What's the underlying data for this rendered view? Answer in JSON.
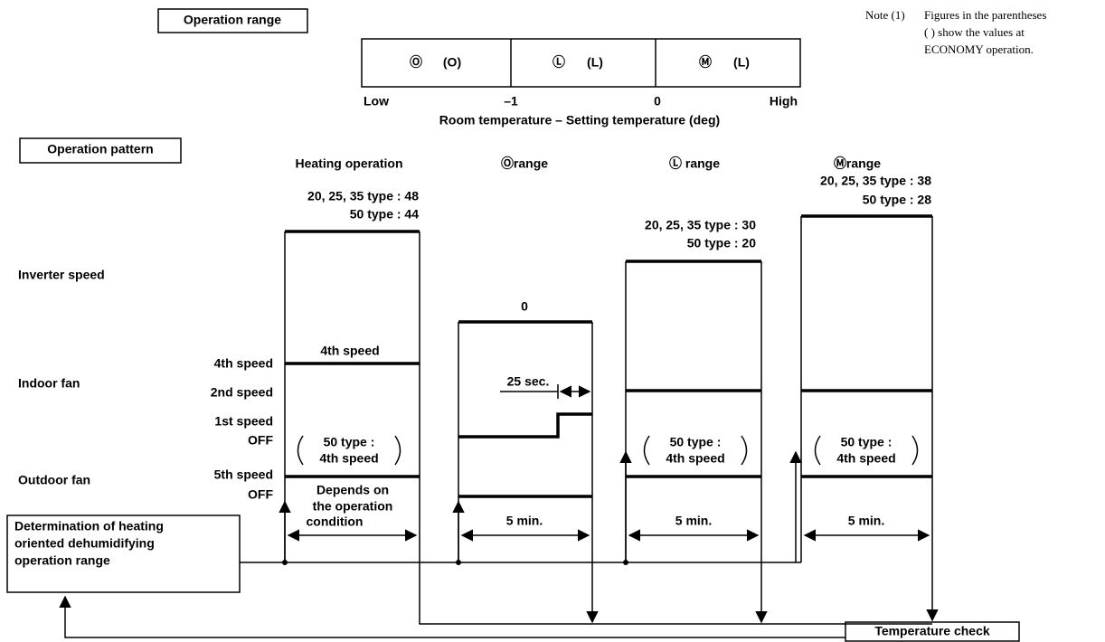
{
  "range": {
    "title": "Operation range",
    "cells": [
      [
        "Ⓞ",
        "(O)"
      ],
      [
        "Ⓛ",
        "(L)"
      ],
      [
        "Ⓜ",
        "(L)"
      ]
    ],
    "axis_labels": [
      "Low",
      "–1",
      "0",
      "High"
    ],
    "axis_title": "Room temperature – Setting temperature (deg)"
  },
  "note": {
    "label": "Note (1)",
    "lines": [
      "Figures in the parentheses",
      "( ) show the values at",
      "ECONOMY operation."
    ]
  },
  "pattern": {
    "title": "Operation pattern",
    "headers": [
      "Heating operation",
      "Ⓞrange",
      "Ⓛ range",
      "Ⓜrange"
    ],
    "heating_values": [
      "20, 25, 35 type : 48",
      "50 type : 44"
    ],
    "o_value": "0",
    "l_values": [
      "20, 25, 35 type : 30",
      "50 type : 20"
    ],
    "m_values": [
      "20, 25, 35 type : 38",
      "50 type : 28"
    ],
    "rows": [
      "Inverter speed",
      "Indoor fan",
      "Outdoor fan"
    ],
    "speeds": [
      "4th speed",
      "2nd speed",
      "1st speed",
      "OFF",
      "5th speed",
      "OFF"
    ],
    "heating_fan": "4th speed",
    "delay": "25 sec.",
    "economy": [
      [
        "50 type :",
        "4th speed"
      ],
      [
        "50 type :",
        "4th speed"
      ],
      [
        "50 type :",
        "4th speed"
      ]
    ],
    "depends": [
      "Depends on",
      "the operation",
      "condition"
    ],
    "durations": [
      "5 min.",
      "5 min.",
      "5 min."
    ],
    "determination": [
      "Determination of heating",
      "oriented dehumidifying",
      "operation range"
    ],
    "check": "Temperature check"
  }
}
